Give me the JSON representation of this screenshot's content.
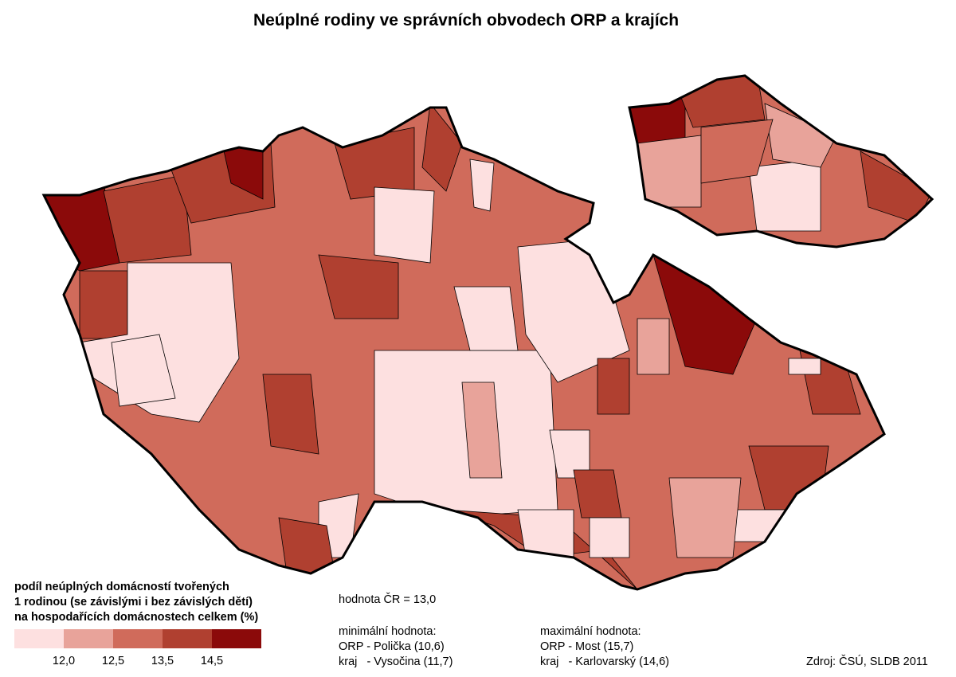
{
  "title": "Neúplné rodiny ve správních obvodech ORP a krajích",
  "legend": {
    "title_lines": [
      "podíl neúplných domácností tvořených",
      "1 rodinou (se závislými i bez závislých dětí)",
      "na hospodařících domácnostech celkem (%)"
    ],
    "colors": [
      "#fde0e0",
      "#e8a39a",
      "#d06b5b",
      "#b04030",
      "#8b0a0a"
    ],
    "breaks": [
      "12,0",
      "12,5",
      "13,5",
      "14,5"
    ]
  },
  "national_value": "hodnota ČR = 13,0",
  "minimum": {
    "heading": "minimální hodnota:",
    "orp": "ORP - Polička (10,6)",
    "kraj": "kraj   - Vysočina (11,7)"
  },
  "maximum": {
    "heading": "maximální hodnota:",
    "orp": "ORP - Most (15,7)",
    "kraj": "kraj   - Karlovarský (14,6)"
  },
  "source": "Zdroj: ČSÚ, SLDB 2011"
}
